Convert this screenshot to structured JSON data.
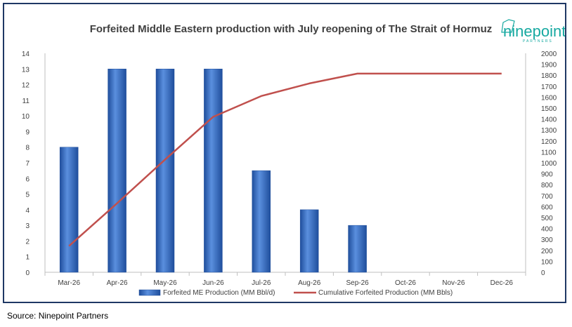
{
  "source": "Source: Ninepoint Partners",
  "logo": {
    "text": "ninepoint",
    "subtext": "PARTNERS",
    "color": "#17a9a1"
  },
  "chart_data": {
    "type": "bar+line",
    "title": "Forfeited Middle Eastern production with July reopening of The Strait of Hormuz",
    "categories": [
      "Mar-26",
      "Apr-26",
      "May-26",
      "Jun-26",
      "Jul-26",
      "Aug-26",
      "Sep-26",
      "Oct-26",
      "Nov-26",
      "Dec-26"
    ],
    "y_left": {
      "min": 0,
      "max": 14,
      "step": 1
    },
    "y_right": {
      "min": 0,
      "max": 2000,
      "step": 100
    },
    "grid": false,
    "legend_position": "bottom",
    "series": [
      {
        "name": "Forfeited ME Production (MM Bbl/d)",
        "type": "bar",
        "axis": "left",
        "color": "#3a6fc4",
        "values": [
          8,
          13,
          13,
          13,
          6.5,
          4,
          3,
          null,
          null,
          null
        ]
      },
      {
        "name": "Cumulative Forfeited Production (MM Bbls)",
        "type": "line",
        "axis": "right",
        "color": "#c0504d",
        "values": [
          240,
          630,
          1030,
          1420,
          1610,
          1725,
          1815,
          1815,
          1815,
          1815
        ]
      }
    ]
  }
}
